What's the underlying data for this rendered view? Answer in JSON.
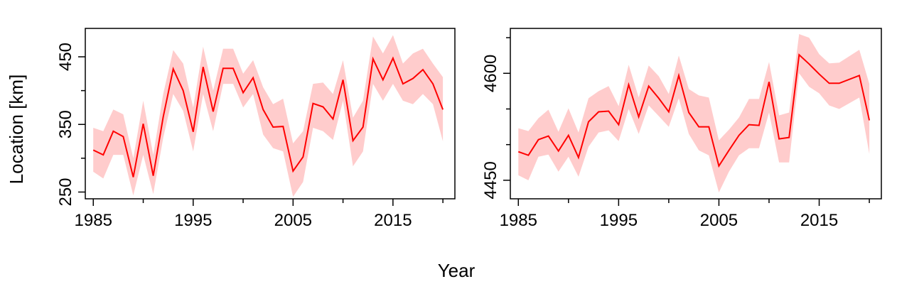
{
  "figure": {
    "xlabel": "Year",
    "ylabel": "Location [km]"
  },
  "colors": {
    "line": "#ff0000",
    "band": "#ffcccc",
    "axis": "#000000"
  },
  "chart_data": [
    {
      "type": "line",
      "x": [
        1985,
        1986,
        1987,
        1988,
        1989,
        1990,
        1991,
        1992,
        1993,
        1994,
        1995,
        1996,
        1997,
        1998,
        1999,
        2000,
        2001,
        2002,
        2003,
        2004,
        2005,
        2006,
        2007,
        2008,
        2009,
        2010,
        2011,
        2012,
        2013,
        2014,
        2015,
        2016,
        2017,
        2018,
        2019,
        2020
      ],
      "series": [
        {
          "values": [
            312,
            305,
            340,
            332,
            272,
            351,
            274,
            361,
            432,
            400,
            339,
            435,
            369,
            433,
            433,
            397,
            419,
            372,
            346,
            347,
            281,
            302,
            381,
            376,
            358,
            416,
            326,
            346,
            447,
            416,
            448,
            410,
            418,
            431,
            410,
            372
          ],
          "lower": [
            280,
            270,
            305,
            305,
            245,
            305,
            247,
            330,
            395,
            370,
            310,
            395,
            340,
            410,
            410,
            375,
            395,
            335,
            315,
            310,
            243,
            265,
            345,
            340,
            327,
            385,
            288,
            310,
            410,
            385,
            410,
            385,
            380,
            395,
            380,
            325
          ],
          "upper": [
            345,
            340,
            372,
            365,
            300,
            385,
            305,
            395,
            460,
            440,
            375,
            465,
            400,
            462,
            462,
            425,
            445,
            405,
            380,
            388,
            322,
            340,
            410,
            412,
            395,
            445,
            360,
            385,
            480,
            455,
            482,
            440,
            455,
            462,
            440,
            420
          ]
        }
      ],
      "xticks": [
        1985,
        1995,
        2005,
        2015
      ],
      "xminor": [
        1990,
        2000,
        2010,
        2020
      ],
      "xlim": [
        1984.2,
        2021.2
      ],
      "yticks": [
        250,
        350,
        450
      ],
      "yminor": [
        300,
        400
      ],
      "ylim": [
        240,
        492
      ],
      "grid": false
    },
    {
      "type": "line",
      "x": [
        1985,
        1986,
        1987,
        1988,
        1989,
        1990,
        1991,
        1992,
        1993,
        1994,
        1995,
        1996,
        1997,
        1998,
        1999,
        2000,
        2001,
        2002,
        2003,
        2004,
        2005,
        2006,
        2007,
        2008,
        2009,
        2010,
        2011,
        2012,
        2013,
        2014,
        2015,
        2016,
        2017,
        2019,
        2020
      ],
      "series": [
        {
          "values": [
            4490,
            4485,
            4507,
            4512,
            4491,
            4513,
            4482,
            4532,
            4546,
            4547,
            4528,
            4584,
            4539,
            4582,
            4565,
            4546,
            4597,
            4545,
            4525,
            4525,
            4470,
            4492,
            4513,
            4528,
            4527,
            4588,
            4508,
            4510,
            4626,
            4613,
            4599,
            4586,
            4586,
            4597,
            4534
          ],
          "lower": [
            4457,
            4450,
            4483,
            4486,
            4462,
            4483,
            4455,
            4497,
            4517,
            4520,
            4505,
            4550,
            4515,
            4555,
            4540,
            4525,
            4565,
            4515,
            4492,
            4485,
            4433,
            4462,
            4485,
            4495,
            4495,
            4545,
            4475,
            4475,
            4600,
            4581,
            4572,
            4555,
            4550,
            4566,
            4487
          ],
          "upper": [
            4523,
            4519,
            4537,
            4549,
            4518,
            4551,
            4517,
            4565,
            4575,
            4582,
            4554,
            4612,
            4566,
            4611,
            4596,
            4571,
            4625,
            4578,
            4569,
            4566,
            4506,
            4521,
            4538,
            4564,
            4564,
            4616,
            4541,
            4545,
            4655,
            4650,
            4627,
            4614,
            4615,
            4633,
            4585
          ]
        }
      ],
      "xticks": [
        1985,
        1995,
        2005,
        2015
      ],
      "xminor": [
        1990,
        2000,
        2010,
        2020
      ],
      "xlim": [
        1984.2,
        2021.2
      ],
      "yticks": [
        4450,
        4600
      ],
      "yminor": [
        4500,
        4550,
        4650
      ],
      "ylim": [
        4424,
        4663
      ],
      "grid": false
    }
  ]
}
